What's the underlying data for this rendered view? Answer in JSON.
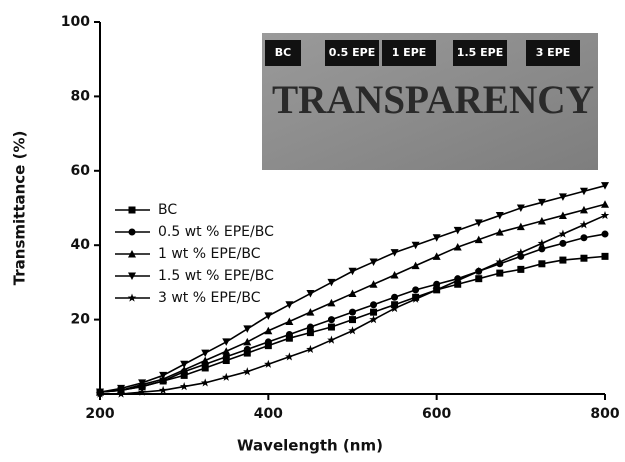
{
  "chart_data": {
    "type": "line",
    "x_label": "Wavelength (nm)",
    "y_label": "Transmittance (%)",
    "xlim": [
      200,
      800
    ],
    "xticks": [
      200,
      400,
      600,
      800
    ],
    "ylim": [
      0,
      100
    ],
    "yticks": [
      20,
      40,
      60,
      80,
      100
    ],
    "x": [
      200,
      225,
      250,
      275,
      300,
      325,
      350,
      375,
      400,
      425,
      450,
      475,
      500,
      525,
      550,
      575,
      600,
      625,
      650,
      675,
      700,
      725,
      750,
      775,
      800
    ],
    "series": [
      {
        "name": "BC",
        "color": "#000000",
        "marker": "square",
        "values": [
          0.5,
          1,
          2,
          3.5,
          5,
          7,
          9,
          11,
          13,
          15,
          16.5,
          18,
          20,
          22,
          24,
          26,
          28,
          29.5,
          31,
          32.5,
          33.5,
          35,
          36,
          36.5,
          37
        ]
      },
      {
        "name": "0.5 wt % EPE/BC",
        "color": "#000000",
        "marker": "circle",
        "values": [
          0.5,
          1,
          2,
          3.5,
          6,
          8,
          10,
          12,
          14,
          16,
          18,
          20,
          22,
          24,
          26,
          28,
          29.5,
          31,
          33,
          35,
          37,
          39,
          40.5,
          42,
          43
        ]
      },
      {
        "name": "1 wt % EPE/BC",
        "color": "#000000",
        "marker": "triangle-up",
        "values": [
          0.5,
          1,
          2.5,
          4,
          6.5,
          9,
          11.5,
          14,
          17,
          19.5,
          22,
          24.5,
          27,
          29.5,
          32,
          34.5,
          37,
          39.5,
          41.5,
          43.5,
          45,
          46.5,
          48,
          49.5,
          51
        ]
      },
      {
        "name": "1.5 wt % EPE/BC",
        "color": "#000000",
        "marker": "triangle-down",
        "values": [
          0.5,
          1.5,
          3,
          5,
          8,
          11,
          14,
          17.5,
          21,
          24,
          27,
          30,
          33,
          35.5,
          38,
          40,
          42,
          44,
          46,
          48,
          50,
          51.5,
          53,
          54.5,
          56
        ]
      },
      {
        "name": "3 wt % EPE/BC",
        "color": "#000000",
        "marker": "star",
        "values": [
          0,
          0,
          0.5,
          1,
          2,
          3,
          4.5,
          6,
          8,
          10,
          12,
          14.5,
          17,
          20,
          23,
          25.5,
          28,
          30.5,
          33,
          35.5,
          38,
          40.5,
          43,
          45.5,
          48
        ]
      }
    ],
    "inset": {
      "labels": [
        "BC",
        "0.5 EPE",
        "1 EPE",
        "1.5 EPE",
        "3 EPE"
      ],
      "text": "TRANSPARENCY"
    }
  }
}
